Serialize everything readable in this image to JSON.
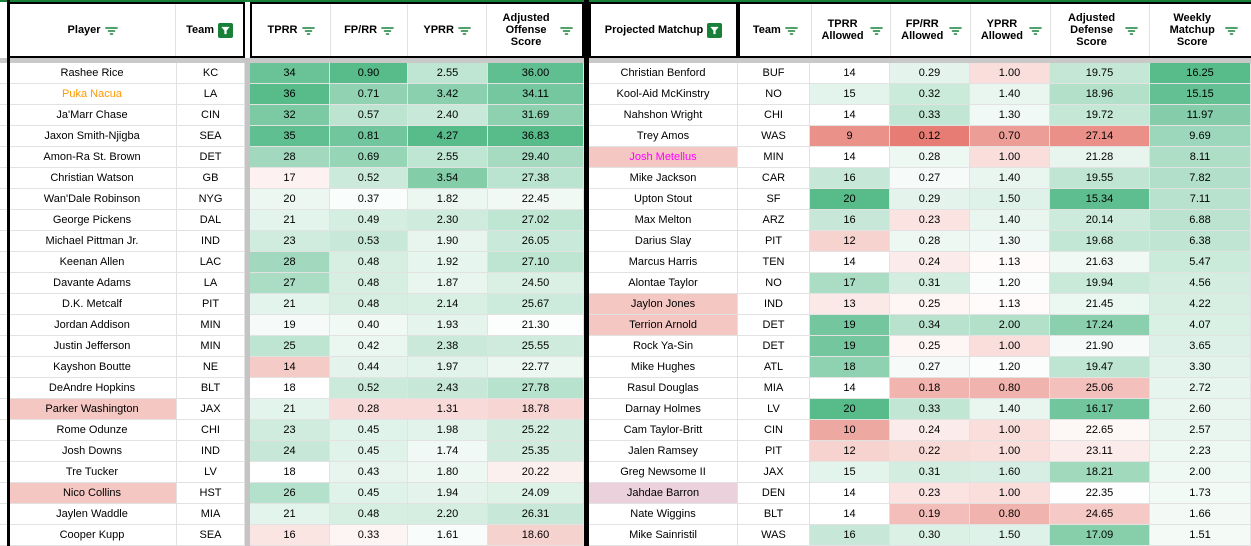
{
  "palette": {
    "green": "#57bb8a",
    "red": "#e67c73",
    "white": "#ffffff",
    "highlight_pink": "#f4c7c3",
    "highlight_purple": "#ead1dc",
    "orange_text": "#ff9900",
    "magenta_text": "#ff00ff",
    "filter_green": "#188038",
    "grid_line": "#e2e2e2",
    "border_black": "#000000",
    "frozen_gray": "#c9c9c9"
  },
  "header": {
    "left": {
      "player": "Player",
      "team": "Team",
      "tprr": "TPRR",
      "fprr": "FP/RR",
      "yprr": "YPRR",
      "adj": "Adjusted Offense Score"
    },
    "right": {
      "matchup": "Projected Matchup",
      "team": "Team",
      "tprr": "TPRR Allowed",
      "fprr": "FP/RR Allowed",
      "yprr": "YPRR Allowed",
      "adj": "Adjusted Defense Score",
      "weekly": "Weekly Matchup Score"
    }
  },
  "scales": {
    "off": {
      "tprr": {
        "min": 8,
        "mid": 18,
        "max": 36
      },
      "fprr": {
        "min": 0.1,
        "mid": 0.35,
        "max": 0.9
      },
      "yprr": {
        "min": 0.8,
        "mid": 1.5,
        "max": 4.27
      },
      "adj": {
        "min": 14,
        "mid": 21,
        "max": 36.83
      }
    },
    "def": {
      "tprr": {
        "min": 8,
        "mid": 14,
        "max": 20
      },
      "fprr": {
        "min": 0.12,
        "mid": 0.26,
        "max": 0.45
      },
      "yprr": {
        "min": 0.55,
        "mid": 1.15,
        "max": 3.0
      },
      "adj": {
        "min": 15.0,
        "mid": 22.3,
        "max": 28.0,
        "reverse": true
      },
      "weekly": {
        "min": 0.5,
        "mid": 0.5,
        "max": 16.25
      }
    }
  },
  "offense_table": {
    "rows": [
      {
        "player": "Rashee Rice",
        "team": "KC",
        "tprr": "34",
        "fprr": "0.90",
        "yprr": "2.55",
        "adj": "36.00",
        "hl": ""
      },
      {
        "player": "Puka Nacua",
        "team": "LA",
        "tprr": "36",
        "fprr": "0.71",
        "yprr": "3.42",
        "adj": "34.11",
        "hl": "orange"
      },
      {
        "player": "Ja'Marr Chase",
        "team": "CIN",
        "tprr": "32",
        "fprr": "0.57",
        "yprr": "2.40",
        "adj": "31.69",
        "hl": ""
      },
      {
        "player": "Jaxon Smith-Njigba",
        "team": "SEA",
        "tprr": "35",
        "fprr": "0.81",
        "yprr": "4.27",
        "adj": "36.83",
        "hl": ""
      },
      {
        "player": "Amon-Ra St. Brown",
        "team": "DET",
        "tprr": "28",
        "fprr": "0.69",
        "yprr": "2.55",
        "adj": "29.40",
        "hl": ""
      },
      {
        "player": "Christian Watson",
        "team": "GB",
        "tprr": "17",
        "fprr": "0.52",
        "yprr": "3.54",
        "adj": "27.38",
        "hl": ""
      },
      {
        "player": "Wan'Dale Robinson",
        "team": "NYG",
        "tprr": "20",
        "fprr": "0.37",
        "yprr": "1.82",
        "adj": "22.45",
        "hl": ""
      },
      {
        "player": "George Pickens",
        "team": "DAL",
        "tprr": "21",
        "fprr": "0.49",
        "yprr": "2.30",
        "adj": "27.02",
        "hl": ""
      },
      {
        "player": "Michael Pittman Jr.",
        "team": "IND",
        "tprr": "23",
        "fprr": "0.53",
        "yprr": "1.90",
        "adj": "26.05",
        "hl": ""
      },
      {
        "player": "Keenan Allen",
        "team": "LAC",
        "tprr": "28",
        "fprr": "0.48",
        "yprr": "1.92",
        "adj": "27.10",
        "hl": ""
      },
      {
        "player": "Davante Adams",
        "team": "LA",
        "tprr": "27",
        "fprr": "0.48",
        "yprr": "1.87",
        "adj": "24.50",
        "hl": ""
      },
      {
        "player": "D.K. Metcalf",
        "team": "PIT",
        "tprr": "21",
        "fprr": "0.48",
        "yprr": "2.14",
        "adj": "25.67",
        "hl": ""
      },
      {
        "player": "Jordan Addison",
        "team": "MIN",
        "tprr": "19",
        "fprr": "0.40",
        "yprr": "1.93",
        "adj": "21.30",
        "hl": ""
      },
      {
        "player": "Justin Jefferson",
        "team": "MIN",
        "tprr": "25",
        "fprr": "0.42",
        "yprr": "2.38",
        "adj": "25.55",
        "hl": ""
      },
      {
        "player": "Kayshon Boutte",
        "team": "NE",
        "tprr": "14",
        "fprr": "0.44",
        "yprr": "1.97",
        "adj": "22.77",
        "hl": ""
      },
      {
        "player": "DeAndre Hopkins",
        "team": "BLT",
        "tprr": "18",
        "fprr": "0.52",
        "yprr": "2.43",
        "adj": "27.78",
        "hl": ""
      },
      {
        "player": "Parker Washington",
        "team": "JAX",
        "tprr": "21",
        "fprr": "0.28",
        "yprr": "1.31",
        "adj": "18.78",
        "hl": "pink"
      },
      {
        "player": "Rome Odunze",
        "team": "CHI",
        "tprr": "23",
        "fprr": "0.45",
        "yprr": "1.98",
        "adj": "25.22",
        "hl": ""
      },
      {
        "player": "Josh Downs",
        "team": "IND",
        "tprr": "24",
        "fprr": "0.45",
        "yprr": "1.74",
        "adj": "25.35",
        "hl": ""
      },
      {
        "player": "Tre Tucker",
        "team": "LV",
        "tprr": "18",
        "fprr": "0.43",
        "yprr": "1.80",
        "adj": "20.22",
        "hl": ""
      },
      {
        "player": "Nico Collins",
        "team": "HST",
        "tprr": "26",
        "fprr": "0.45",
        "yprr": "1.94",
        "adj": "24.09",
        "hl": "pink"
      },
      {
        "player": "Jaylen Waddle",
        "team": "MIA",
        "tprr": "21",
        "fprr": "0.48",
        "yprr": "2.20",
        "adj": "26.31",
        "hl": ""
      },
      {
        "player": "Cooper Kupp",
        "team": "SEA",
        "tprr": "16",
        "fprr": "0.33",
        "yprr": "1.61",
        "adj": "18.60",
        "hl": ""
      }
    ]
  },
  "defense_table": {
    "rows": [
      {
        "player": "Christian Benford",
        "team": "BUF",
        "tprr": "14",
        "fprr": "0.29",
        "yprr": "1.00",
        "adj": "19.75",
        "weekly": "16.25",
        "hl": ""
      },
      {
        "player": "Kool-Aid McKinstry",
        "team": "NO",
        "tprr": "15",
        "fprr": "0.32",
        "yprr": "1.40",
        "adj": "18.96",
        "weekly": "15.15",
        "hl": ""
      },
      {
        "player": "Nahshon Wright",
        "team": "CHI",
        "tprr": "14",
        "fprr": "0.33",
        "yprr": "1.30",
        "adj": "19.72",
        "weekly": "11.97",
        "hl": ""
      },
      {
        "player": "Trey Amos",
        "team": "WAS",
        "tprr": "9",
        "fprr": "0.12",
        "yprr": "0.70",
        "adj": "27.14",
        "weekly": "9.69",
        "hl": ""
      },
      {
        "player": "Josh Metellus",
        "team": "MIN",
        "tprr": "14",
        "fprr": "0.28",
        "yprr": "1.00",
        "adj": "21.28",
        "weekly": "8.11",
        "hl": "magenta-pink"
      },
      {
        "player": "Mike Jackson",
        "team": "CAR",
        "tprr": "16",
        "fprr": "0.27",
        "yprr": "1.40",
        "adj": "19.55",
        "weekly": "7.82",
        "hl": ""
      },
      {
        "player": "Upton Stout",
        "team": "SF",
        "tprr": "20",
        "fprr": "0.29",
        "yprr": "1.50",
        "adj": "15.34",
        "weekly": "7.11",
        "hl": ""
      },
      {
        "player": "Max Melton",
        "team": "ARZ",
        "tprr": "16",
        "fprr": "0.23",
        "yprr": "1.40",
        "adj": "20.14",
        "weekly": "6.88",
        "hl": ""
      },
      {
        "player": "Darius Slay",
        "team": "PIT",
        "tprr": "12",
        "fprr": "0.28",
        "yprr": "1.30",
        "adj": "19.68",
        "weekly": "6.38",
        "hl": ""
      },
      {
        "player": "Marcus Harris",
        "team": "TEN",
        "tprr": "14",
        "fprr": "0.24",
        "yprr": "1.13",
        "adj": "21.63",
        "weekly": "5.47",
        "hl": ""
      },
      {
        "player": "Alontae Taylor",
        "team": "NO",
        "tprr": "17",
        "fprr": "0.31",
        "yprr": "1.20",
        "adj": "19.94",
        "weekly": "4.56",
        "hl": ""
      },
      {
        "player": "Jaylon Jones",
        "team": "IND",
        "tprr": "13",
        "fprr": "0.25",
        "yprr": "1.13",
        "adj": "21.45",
        "weekly": "4.22",
        "hl": "pink"
      },
      {
        "player": "Terrion Arnold",
        "team": "DET",
        "tprr": "19",
        "fprr": "0.34",
        "yprr": "2.00",
        "adj": "17.24",
        "weekly": "4.07",
        "hl": "pink"
      },
      {
        "player": "Rock Ya-Sin",
        "team": "DET",
        "tprr": "19",
        "fprr": "0.25",
        "yprr": "1.00",
        "adj": "21.90",
        "weekly": "3.65",
        "hl": ""
      },
      {
        "player": "Mike Hughes",
        "team": "ATL",
        "tprr": "18",
        "fprr": "0.27",
        "yprr": "1.20",
        "adj": "19.47",
        "weekly": "3.30",
        "hl": ""
      },
      {
        "player": "Rasul Douglas",
        "team": "MIA",
        "tprr": "14",
        "fprr": "0.18",
        "yprr": "0.80",
        "adj": "25.06",
        "weekly": "2.72",
        "hl": ""
      },
      {
        "player": "Darnay Holmes",
        "team": "LV",
        "tprr": "20",
        "fprr": "0.33",
        "yprr": "1.40",
        "adj": "16.17",
        "weekly": "2.60",
        "hl": ""
      },
      {
        "player": "Cam Taylor-Britt",
        "team": "CIN",
        "tprr": "10",
        "fprr": "0.24",
        "yprr": "1.00",
        "adj": "22.65",
        "weekly": "2.57",
        "hl": ""
      },
      {
        "player": "Jalen Ramsey",
        "team": "PIT",
        "tprr": "12",
        "fprr": "0.22",
        "yprr": "1.00",
        "adj": "23.11",
        "weekly": "2.23",
        "hl": ""
      },
      {
        "player": "Greg Newsome II",
        "team": "JAX",
        "tprr": "15",
        "fprr": "0.31",
        "yprr": "1.60",
        "adj": "18.21",
        "weekly": "2.00",
        "hl": ""
      },
      {
        "player": "Jahdae Barron",
        "team": "DEN",
        "tprr": "14",
        "fprr": "0.23",
        "yprr": "1.00",
        "adj": "22.35",
        "weekly": "1.73",
        "hl": "purple"
      },
      {
        "player": "Nate Wiggins",
        "team": "BLT",
        "tprr": "14",
        "fprr": "0.19",
        "yprr": "0.80",
        "adj": "24.65",
        "weekly": "1.66",
        "hl": ""
      },
      {
        "player": "Mike Sainristil",
        "team": "WAS",
        "tprr": "16",
        "fprr": "0.30",
        "yprr": "1.50",
        "adj": "17.09",
        "weekly": "1.51",
        "hl": ""
      }
    ]
  }
}
